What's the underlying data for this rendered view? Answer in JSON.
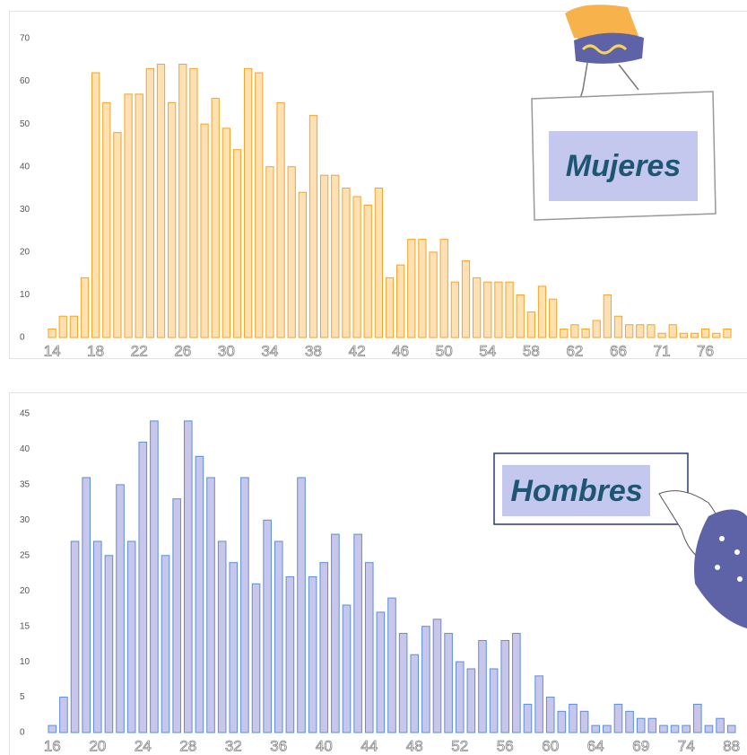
{
  "chart_data": [
    {
      "type": "bar",
      "annotation": "Mujeres",
      "categories": [
        "14",
        null,
        null,
        null,
        "18",
        null,
        null,
        null,
        "22",
        null,
        null,
        null,
        "26",
        null,
        null,
        null,
        "30",
        null,
        null,
        null,
        "34",
        null,
        null,
        null,
        "38",
        null,
        null,
        null,
        "42",
        null,
        null,
        null,
        "46",
        null,
        null,
        null,
        "50",
        null,
        null,
        null,
        "54",
        null,
        null,
        null,
        "58",
        null,
        null,
        null,
        "62",
        null,
        null,
        null,
        "66",
        null,
        null,
        null,
        "71",
        null,
        null,
        null,
        "76",
        null,
        null
      ],
      "values": [
        2,
        5,
        5,
        14,
        62,
        55,
        48,
        57,
        57,
        63,
        64,
        55,
        64,
        63,
        50,
        56,
        49,
        44,
        63,
        62,
        40,
        55,
        40,
        34,
        52,
        38,
        38,
        35,
        33,
        31,
        35,
        14,
        17,
        23,
        23,
        20,
        23,
        13,
        18,
        14,
        13,
        13,
        13,
        10,
        6,
        12,
        9,
        2,
        3,
        2,
        4,
        10,
        5,
        3,
        3,
        3,
        1,
        3,
        1,
        1,
        2,
        1,
        2
      ],
      "color": "#fde0b3",
      "edge_color": "#f5a524",
      "ylim": [
        0,
        70
      ],
      "yticks": [
        0,
        10,
        20,
        30,
        40,
        50,
        60,
        70
      ]
    },
    {
      "type": "bar",
      "annotation": "Hombres",
      "categories": [
        "16",
        null,
        null,
        null,
        "20",
        null,
        null,
        null,
        "24",
        null,
        null,
        null,
        "28",
        null,
        null,
        null,
        "32",
        null,
        null,
        null,
        "36",
        null,
        null,
        null,
        "40",
        null,
        null,
        null,
        "44",
        null,
        null,
        null,
        "48",
        null,
        null,
        null,
        "52",
        null,
        null,
        null,
        "56",
        null,
        null,
        null,
        "60",
        null,
        null,
        null,
        "64",
        null,
        null,
        null,
        "69",
        null,
        null,
        null,
        "74",
        null,
        null,
        null,
        "88"
      ],
      "values": [
        1,
        5,
        27,
        36,
        27,
        25,
        35,
        27,
        41,
        44,
        25,
        33,
        44,
        39,
        36,
        27,
        24,
        36,
        21,
        30,
        27,
        22,
        36,
        22,
        24,
        28,
        18,
        28,
        24,
        17,
        19,
        14,
        11,
        15,
        16,
        14,
        10,
        9,
        13,
        9,
        13,
        14,
        4,
        8,
        5,
        3,
        4,
        3,
        1,
        1,
        4,
        3,
        2,
        2,
        1,
        1,
        1,
        4,
        1,
        2,
        1
      ],
      "color": "#c9c6ec",
      "edge_color": "#5b8fd9",
      "ylim": [
        0,
        45
      ],
      "yticks": [
        0,
        5,
        10,
        15,
        20,
        25,
        30,
        35,
        40,
        45
      ]
    }
  ]
}
